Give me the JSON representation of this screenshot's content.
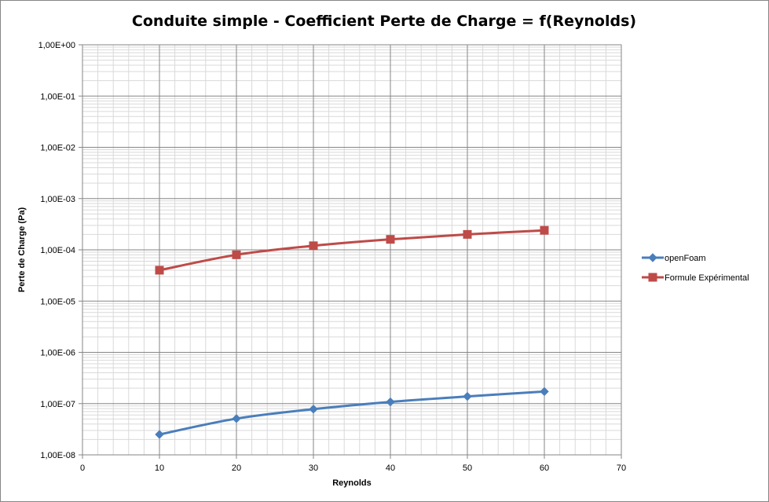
{
  "chart_data": {
    "type": "line",
    "title": "Conduite simple - Coefficient Perte de Charge = f(Reynolds)",
    "xlabel": "Reynolds",
    "ylabel": "Perte de Charge (Pa)",
    "xlim": [
      0,
      70
    ],
    "ylim": [
      1e-08,
      1
    ],
    "yscale": "log",
    "grid": true,
    "legend": "right",
    "x_ticks": [
      0,
      10,
      20,
      30,
      40,
      50,
      60,
      70
    ],
    "x_tick_labels": [
      "0",
      "10",
      "20",
      "30",
      "40",
      "50",
      "60",
      "70"
    ],
    "y_ticks": [
      1,
      0.1,
      0.01,
      0.001,
      0.0001,
      1e-05,
      1e-06,
      1e-07,
      1e-08
    ],
    "y_tick_labels": [
      "1,00E+00",
      "1,00E-01",
      "1,00E-02",
      "1,00E-03",
      "1,00E-04",
      "1,00E-05",
      "1,00E-06",
      "1,00E-07",
      "1,00E-08"
    ],
    "series": [
      {
        "name": "openFoam",
        "color": "#4a7ebb",
        "marker": "diamond",
        "x": [
          10,
          20,
          30,
          40,
          50,
          60
        ],
        "y": [
          2.5e-08,
          5.1e-08,
          7.8e-08,
          1.08e-07,
          1.38e-07,
          1.72e-07
        ]
      },
      {
        "name": "Formule Expérimental",
        "color": "#be4b48",
        "marker": "square",
        "x": [
          10,
          20,
          30,
          40,
          50,
          60
        ],
        "y": [
          4e-05,
          8e-05,
          0.00012,
          0.00016,
          0.0002,
          0.00024
        ]
      }
    ]
  }
}
